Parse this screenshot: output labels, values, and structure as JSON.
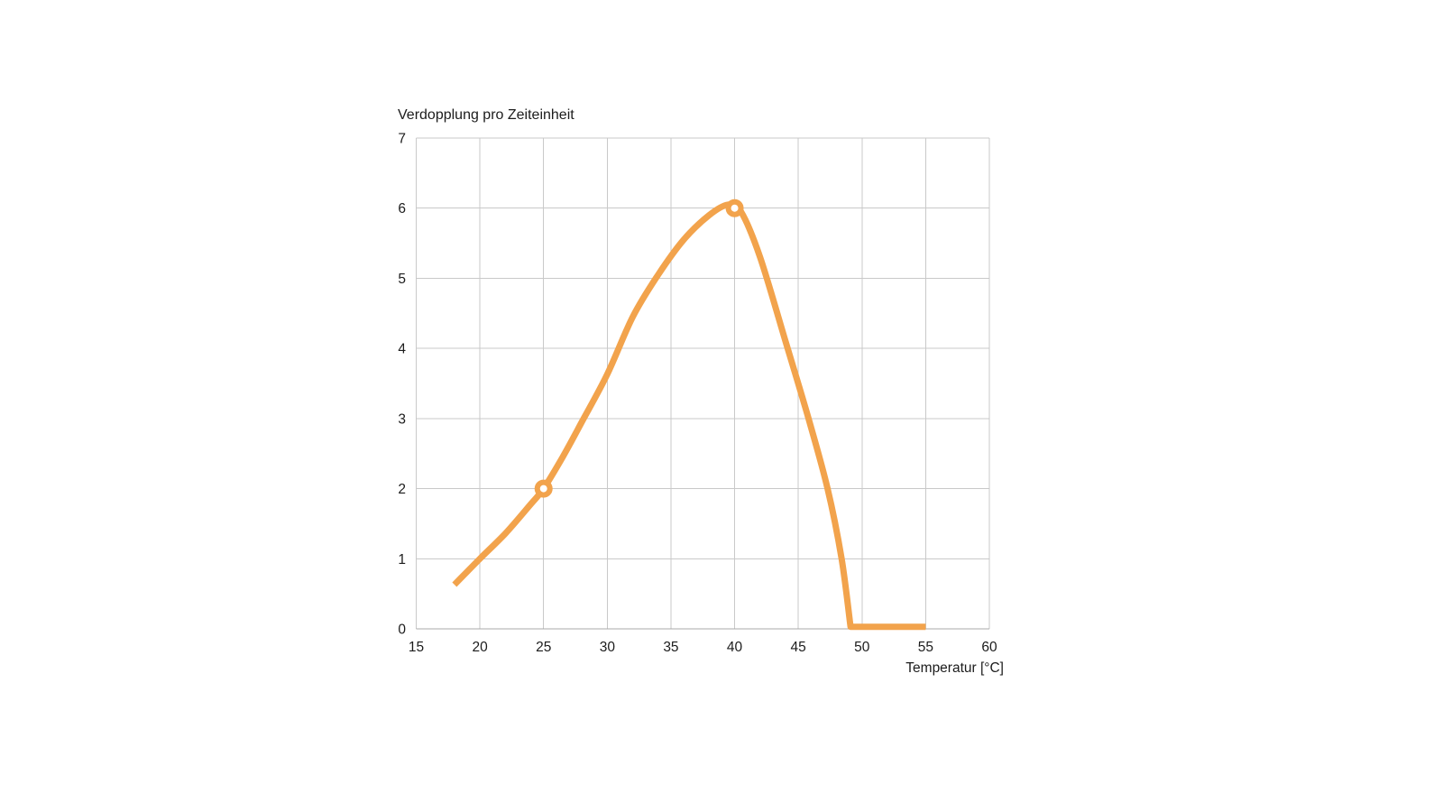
{
  "page": {
    "background": "#ffffff"
  },
  "chart_data": {
    "type": "line",
    "title": "Verdopplung pro Zeiteinheit",
    "xlabel": "Temperatur [°C]",
    "ylabel": "",
    "xlim": [
      15,
      60
    ],
    "ylim": [
      0,
      7
    ],
    "xticks": [
      "15",
      "20",
      "25",
      "30",
      "35",
      "40",
      "45",
      "50",
      "55",
      "60"
    ],
    "yticks": [
      "0",
      "1",
      "2",
      "3",
      "4",
      "5",
      "6",
      "7"
    ],
    "grid": true,
    "legend_position": "none",
    "series": [
      {
        "color": "#F2A34C",
        "line_width": 7,
        "points": [
          [
            18,
            0.63
          ],
          [
            20,
            1.0
          ],
          [
            22,
            1.36
          ],
          [
            24,
            1.78
          ],
          [
            25,
            2.0
          ],
          [
            26.5,
            2.45
          ],
          [
            28,
            2.95
          ],
          [
            30,
            3.63
          ],
          [
            32,
            4.45
          ],
          [
            34,
            5.05
          ],
          [
            36,
            5.55
          ],
          [
            38,
            5.9
          ],
          [
            39.5,
            6.05
          ],
          [
            40.5,
            5.95
          ],
          [
            42,
            5.3
          ],
          [
            44,
            4.1
          ],
          [
            45.8,
            3.0
          ],
          [
            47.3,
            2.0
          ],
          [
            48.4,
            1.0
          ],
          [
            49.1,
            0.03
          ]
        ],
        "tail_to": [
          55,
          0.03
        ]
      }
    ],
    "markers": [
      {
        "x": 25,
        "y": 2,
        "style": "open-circle"
      },
      {
        "x": 40,
        "y": 6,
        "style": "open-circle"
      }
    ],
    "colors": {
      "line": "#F2A34C",
      "marker_fill": "#ffffff",
      "grid": "#c9c9c9",
      "axis_line": "#a8a8a8",
      "text": "#1c1c1c"
    }
  }
}
